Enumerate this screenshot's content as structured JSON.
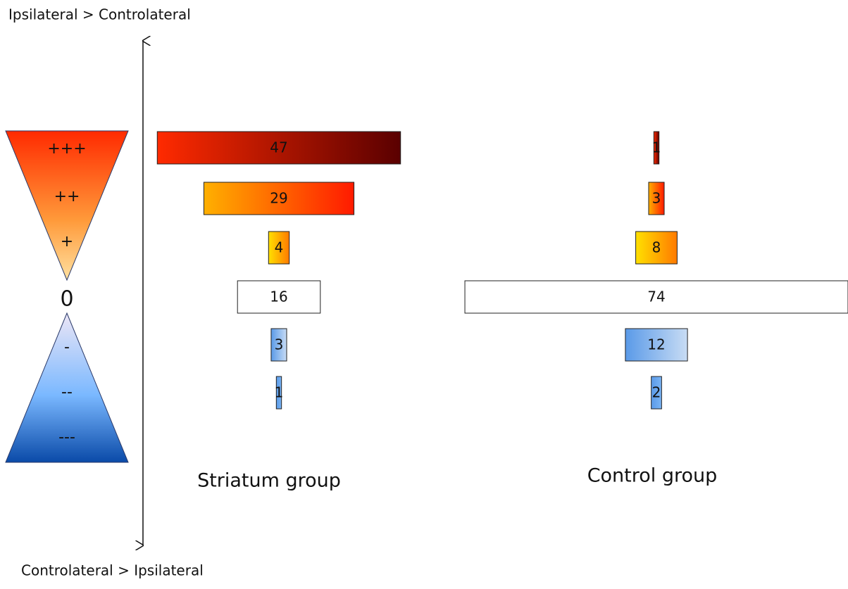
{
  "axis_labels": {
    "top": "Ipsilateral > Controlateral",
    "bottom": "Controlateral > Ipsilateral"
  },
  "scale": {
    "labels": [
      "+++",
      "++",
      "+",
      "0",
      "-",
      "--",
      "---"
    ]
  },
  "chart_data": {
    "type": "funnel",
    "series": [
      {
        "name": "Striatum group",
        "values": [
          47,
          29,
          4,
          16,
          3,
          1
        ]
      },
      {
        "name": "Control group",
        "values": [
          1,
          3,
          8,
          74,
          12,
          2
        ]
      }
    ],
    "colors": [
      [
        "#ff2a00",
        "#5a0000"
      ],
      [
        "#ffb000",
        "#ff1a00"
      ],
      [
        "#ffe000",
        "#ff7a00"
      ],
      [
        "#ffffff",
        "#ffffff"
      ],
      [
        "#5a9ae8",
        "#c8dcf4"
      ],
      [
        "#5a9ae8",
        "#7ab4f4"
      ]
    ]
  }
}
